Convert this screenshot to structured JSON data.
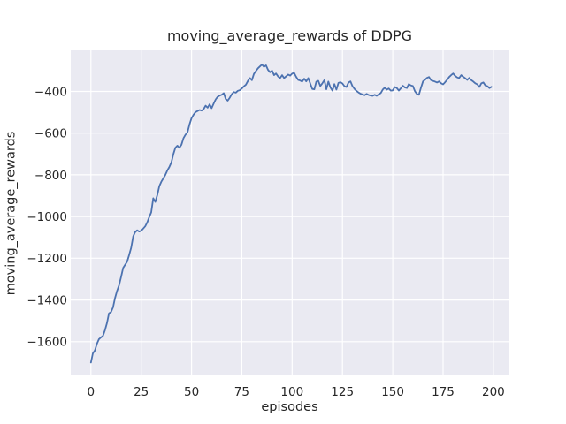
{
  "figure": {
    "background": "#ffffff",
    "plot_background": "#eaeaf2",
    "grid_color": "#ffffff",
    "text_color": "#262626"
  },
  "chart_data": {
    "type": "line",
    "title": "moving_average_rewards of DDPG",
    "xlabel": "episodes",
    "ylabel": "moving_average_rewards",
    "grid": true,
    "legend": false,
    "x_ticks": [
      0,
      25,
      50,
      75,
      100,
      125,
      150,
      175,
      200
    ],
    "y_ticks": [
      -400,
      -600,
      -800,
      -1000,
      -1200,
      -1400,
      -1600
    ],
    "xlim": [
      -10,
      207.5
    ],
    "ylim": [
      -1762,
      -203
    ],
    "series": [
      {
        "name": "moving_average_rewards",
        "color": "#4c72b0",
        "x_start": 0,
        "x_step": 1,
        "values": [
          -1700,
          -1656,
          -1642,
          -1610,
          -1588,
          -1580,
          -1572,
          -1545,
          -1510,
          -1464,
          -1458,
          -1436,
          -1390,
          -1357,
          -1330,
          -1290,
          -1247,
          -1232,
          -1217,
          -1185,
          -1150,
          -1095,
          -1075,
          -1066,
          -1072,
          -1068,
          -1058,
          -1047,
          -1028,
          -1002,
          -980,
          -912,
          -930,
          -897,
          -855,
          -833,
          -817,
          -800,
          -779,
          -762,
          -740,
          -700,
          -670,
          -660,
          -670,
          -655,
          -625,
          -608,
          -596,
          -558,
          -528,
          -512,
          -499,
          -494,
          -489,
          -492,
          -485,
          -468,
          -478,
          -462,
          -480,
          -458,
          -438,
          -426,
          -420,
          -416,
          -408,
          -436,
          -444,
          -430,
          -413,
          -403,
          -406,
          -397,
          -394,
          -386,
          -376,
          -368,
          -350,
          -336,
          -346,
          -316,
          -302,
          -289,
          -280,
          -271,
          -282,
          -275,
          -296,
          -308,
          -300,
          -322,
          -314,
          -328,
          -336,
          -322,
          -336,
          -328,
          -319,
          -324,
          -315,
          -311,
          -330,
          -345,
          -348,
          -353,
          -339,
          -352,
          -336,
          -362,
          -388,
          -390,
          -353,
          -349,
          -374,
          -361,
          -346,
          -390,
          -353,
          -381,
          -396,
          -365,
          -391,
          -359,
          -356,
          -362,
          -375,
          -379,
          -357,
          -352,
          -375,
          -388,
          -398,
          -405,
          -411,
          -415,
          -418,
          -412,
          -417,
          -420,
          -421,
          -416,
          -421,
          -414,
          -408,
          -391,
          -382,
          -391,
          -386,
          -396,
          -395,
          -379,
          -384,
          -396,
          -385,
          -373,
          -381,
          -384,
          -365,
          -371,
          -374,
          -399,
          -412,
          -416,
          -382,
          -352,
          -344,
          -335,
          -331,
          -346,
          -350,
          -353,
          -357,
          -352,
          -361,
          -366,
          -356,
          -344,
          -331,
          -322,
          -314,
          -326,
          -333,
          -336,
          -322,
          -330,
          -337,
          -345,
          -335,
          -346,
          -353,
          -361,
          -366,
          -379,
          -361,
          -357,
          -371,
          -375,
          -384,
          -378
        ]
      }
    ]
  }
}
